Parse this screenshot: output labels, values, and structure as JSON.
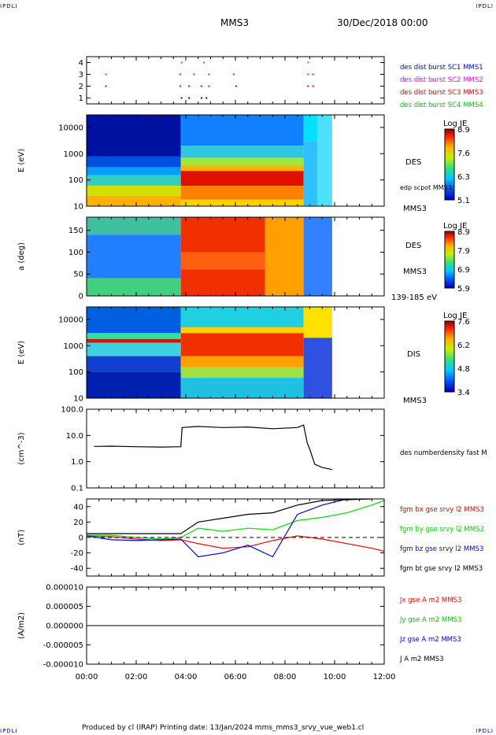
{
  "header": {
    "corner_tl": "IPDLI",
    "corner_tr": "IPDLI",
    "corner_bl": "IPDLI",
    "corner_br": "IPDLI",
    "spacecraft": "MMS3",
    "datetime": "30/Dec/2018 00:00"
  },
  "footer": {
    "text": "Produced by cl (IRAP)   Printing date: 13/Jan/2024   mms_mms3_srvy_vue_web1.cl"
  },
  "colors": {
    "sc1": "#0000ff",
    "sc2": "#ff00ff",
    "sc3": "#ff0000",
    "sc4": "#00cc00",
    "bx": "#ff0000",
    "by": "#00dd00",
    "bz": "#0000ff",
    "bt": "#000000"
  },
  "chart_data": [
    {
      "type": "scatter",
      "panel": "burst",
      "yticks": [
        "4",
        "3",
        "2",
        "1"
      ],
      "ylim": [
        0.5,
        4.5
      ],
      "series": [
        {
          "name": "des dist burst SC1 MMS1",
          "color": "#0000ff",
          "y": 1,
          "x_hours": [
            3.8,
            4.1,
            4.6,
            4.8
          ]
        },
        {
          "name": "des dist burst SC2 MMS2",
          "color": "#ff00ff",
          "y": 3,
          "x_hours": [
            0.75,
            3.75,
            4.3,
            4.9,
            5.9,
            8.9,
            9.1
          ]
        },
        {
          "name": "des dist burst SC3 MMS3",
          "color": "#ff0000",
          "y": 2,
          "x_hours": [
            0.75,
            3.75,
            4.1,
            4.6,
            4.9,
            6.0,
            8.9,
            9.1
          ]
        },
        {
          "name": "des dist burst SC4 MMS4",
          "color": "#00cc00",
          "y": 4,
          "x_hours": [
            3.8,
            4.7,
            8.9
          ]
        }
      ]
    },
    {
      "type": "heatmap",
      "panel": "des_energy",
      "ylabel": "E (eV)",
      "yscale": "log",
      "ylim": [
        10,
        30000
      ],
      "yticks": [
        "10000",
        "1000",
        "100",
        "10"
      ],
      "label": "DES",
      "label2": "MMS3",
      "overlay": "edp scpot MMS3",
      "colorbar": {
        "title": "Log JE",
        "ticks": [
          "8.9",
          "7.6",
          "6.3",
          "5.1"
        ]
      }
    },
    {
      "type": "heatmap",
      "panel": "des_pitch",
      "ylabel": "a (deg)",
      "ylim": [
        0,
        180
      ],
      "yticks": [
        "150",
        "100",
        "50",
        "0"
      ],
      "label": "DES",
      "label2": "MMS3",
      "energy_range": "139-185 eV",
      "colorbar": {
        "title": "Log JE",
        "ticks": [
          "8.9",
          "7.9",
          "6.9",
          "5.9"
        ]
      }
    },
    {
      "type": "heatmap",
      "panel": "dis_energy",
      "ylabel": "E (eV)",
      "yscale": "log",
      "ylim": [
        10,
        30000
      ],
      "yticks": [
        "10000",
        "1000",
        "100",
        "10"
      ],
      "label": "DIS",
      "label2": "MMS3",
      "colorbar": {
        "title": "Log JE",
        "ticks": [
          "7.6",
          "6.2",
          "4.8",
          "3.4"
        ]
      }
    },
    {
      "type": "line",
      "panel": "density",
      "ylabel": "(cm^-3)",
      "yscale": "log",
      "ylim": [
        0.1,
        100
      ],
      "yticks": [
        "100.0",
        "10.0",
        "1.0",
        "0.1"
      ],
      "series": [
        {
          "name": "des numberdensity fast M",
          "color": "#000000",
          "x_hours": [
            0.3,
            1.0,
            2.0,
            3.0,
            3.8,
            3.85,
            4.5,
            5.5,
            6.5,
            7.5,
            8.5,
            8.75,
            8.9,
            9.0,
            9.2,
            9.5,
            9.9
          ],
          "values": [
            3.8,
            3.9,
            3.7,
            3.6,
            3.7,
            20,
            22,
            20,
            21,
            18,
            20,
            25,
            5,
            3,
            0.8,
            0.6,
            0.5
          ]
        }
      ]
    },
    {
      "type": "line",
      "panel": "magnetic_field",
      "ylabel": "(nT)",
      "ylim": [
        -50,
        50
      ],
      "yticks": [
        "40",
        "20",
        "0",
        "-20",
        "-40"
      ],
      "zero_line": true,
      "series": [
        {
          "name": "fgm bx gse srvy l2 MMS3",
          "color": "#ff0000",
          "x_hours": [
            0,
            1,
            2,
            3,
            3.8,
            4.5,
            5.5,
            6.5,
            7.5,
            8.5,
            9.5,
            10.5,
            11.5,
            12
          ],
          "values": [
            2,
            1,
            -2,
            -4,
            -3,
            -8,
            -14,
            -12,
            -4,
            2,
            -2,
            -8,
            -14,
            -18
          ]
        },
        {
          "name": "fgm by gse srvy l2 MMS3",
          "color": "#00dd00",
          "x_hours": [
            0,
            1,
            2,
            3,
            3.8,
            4.5,
            5.5,
            6.5,
            7.5,
            8.5,
            9.5,
            10.5,
            11.5,
            12
          ],
          "values": [
            3,
            3,
            0,
            -2,
            0,
            12,
            8,
            12,
            10,
            22,
            26,
            32,
            42,
            48
          ]
        },
        {
          "name": "fgm bz gse srvy l2 MMS3",
          "color": "#0000ff",
          "x_hours": [
            0,
            1,
            2,
            3,
            3.8,
            4.5,
            5.5,
            6.5,
            7.5,
            8.5,
            9.5,
            10.5
          ],
          "values": [
            2,
            -3,
            -4,
            -3,
            -2,
            -25,
            -20,
            -10,
            -25,
            30,
            42,
            50
          ]
        },
        {
          "name": "fgm bt gse srvy l2 MMS3",
          "color": "#000000",
          "x_hours": [
            0,
            1,
            2,
            3,
            3.8,
            4.5,
            5.5,
            6.5,
            7.5,
            8.5,
            9.5,
            10.5,
            11.5
          ],
          "values": [
            5,
            5,
            5,
            5,
            5,
            20,
            25,
            30,
            32,
            42,
            48,
            49,
            50
          ]
        }
      ]
    },
    {
      "type": "line",
      "panel": "current",
      "ylabel": "(A/m2)",
      "ylim": [
        -0.0001,
        0.0001
      ],
      "yticks": [
        "0.000010",
        "0.000005",
        "0.000000",
        "-0.000005",
        "-0.000010"
      ],
      "series": [
        {
          "name": "Jx gse A m2 MMS3",
          "color": "#ff0000"
        },
        {
          "name": "Jy gse A m2 MMS3",
          "color": "#00cc00"
        },
        {
          "name": "Jz gse A m2 MMS3",
          "color": "#0000ff"
        },
        {
          "name": "J A m2 MMS3",
          "color": "#000000"
        }
      ]
    }
  ],
  "xaxis": {
    "ticks": [
      "00:00",
      "02:00",
      "04:00",
      "06:00",
      "08:00",
      "10:00",
      "12:00"
    ],
    "xlim_hours": [
      0,
      12
    ]
  }
}
